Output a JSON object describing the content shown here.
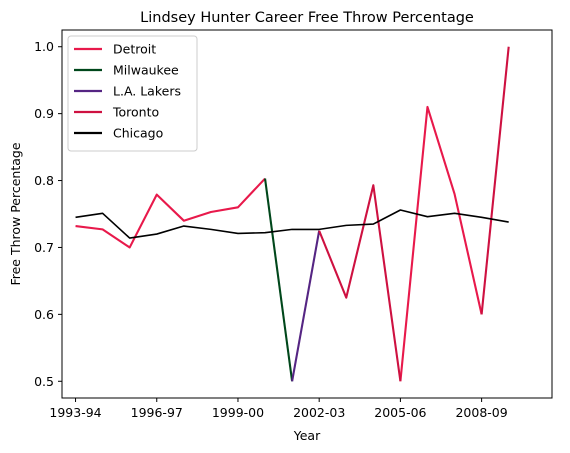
{
  "chart_data": {
    "type": "line",
    "title": "Lindsey Hunter Career Free Throw Percentage",
    "xlabel": "Year",
    "ylabel": "Free Throw Percentage",
    "x_ticks": [
      "1993-94",
      "1996-97",
      "1999-00",
      "2002-03",
      "2005-06",
      "2008-09"
    ],
    "y_ticks": [
      "0.5",
      "0.6",
      "0.7",
      "0.8",
      "0.9",
      "1.0"
    ],
    "xlim": [
      -0.5,
      17.6
    ],
    "ylim": [
      0.475,
      1.025
    ],
    "grid": false,
    "legend_position": "upper-left",
    "series": [
      {
        "name": "Detroit",
        "color": "#e8194b",
        "segments": [
          [
            [
              0,
              0.732
            ],
            [
              1,
              0.727
            ],
            [
              2,
              0.7
            ],
            [
              3,
              0.779
            ],
            [
              4,
              0.74
            ],
            [
              5,
              0.753
            ],
            [
              6,
              0.76
            ],
            [
              7,
              0.803
            ]
          ],
          [
            [
              12,
              0.5
            ],
            [
              13,
              0.91
            ],
            [
              14,
              0.78
            ],
            [
              15,
              0.6
            ]
          ]
        ]
      },
      {
        "name": "Milwaukee",
        "color": "#00471b",
        "segments": [
          [
            [
              7,
              0.803
            ],
            [
              8,
              0.5
            ]
          ]
        ]
      },
      {
        "name": "L.A. Lakers",
        "color": "#552583",
        "segments": [
          [
            [
              8,
              0.5
            ],
            [
              9,
              0.725
            ]
          ]
        ]
      },
      {
        "name": "Toronto",
        "color": "#ce1141",
        "segments": [
          [
            [
              9,
              0.725
            ],
            [
              10,
              0.625
            ],
            [
              11,
              0.793
            ],
            [
              12,
              0.5
            ]
          ],
          [
            [
              15,
              0.6
            ],
            [
              16,
              1.0
            ]
          ]
        ]
      },
      {
        "name": "Chicago",
        "color": "#000000",
        "segments": [
          [
            [
              0,
              0.745
            ],
            [
              1,
              0.751
            ],
            [
              2,
              0.714
            ],
            [
              3,
              0.72
            ],
            [
              4,
              0.732
            ],
            [
              5,
              0.727
            ],
            [
              6,
              0.721
            ],
            [
              7,
              0.722
            ],
            [
              8,
              0.727
            ],
            [
              9,
              0.727
            ],
            [
              10,
              0.733
            ],
            [
              11,
              0.735
            ],
            [
              12,
              0.756
            ],
            [
              13,
              0.746
            ],
            [
              14,
              0.751
            ],
            [
              15,
              0.745
            ],
            [
              16,
              0.738
            ]
          ]
        ]
      }
    ]
  }
}
